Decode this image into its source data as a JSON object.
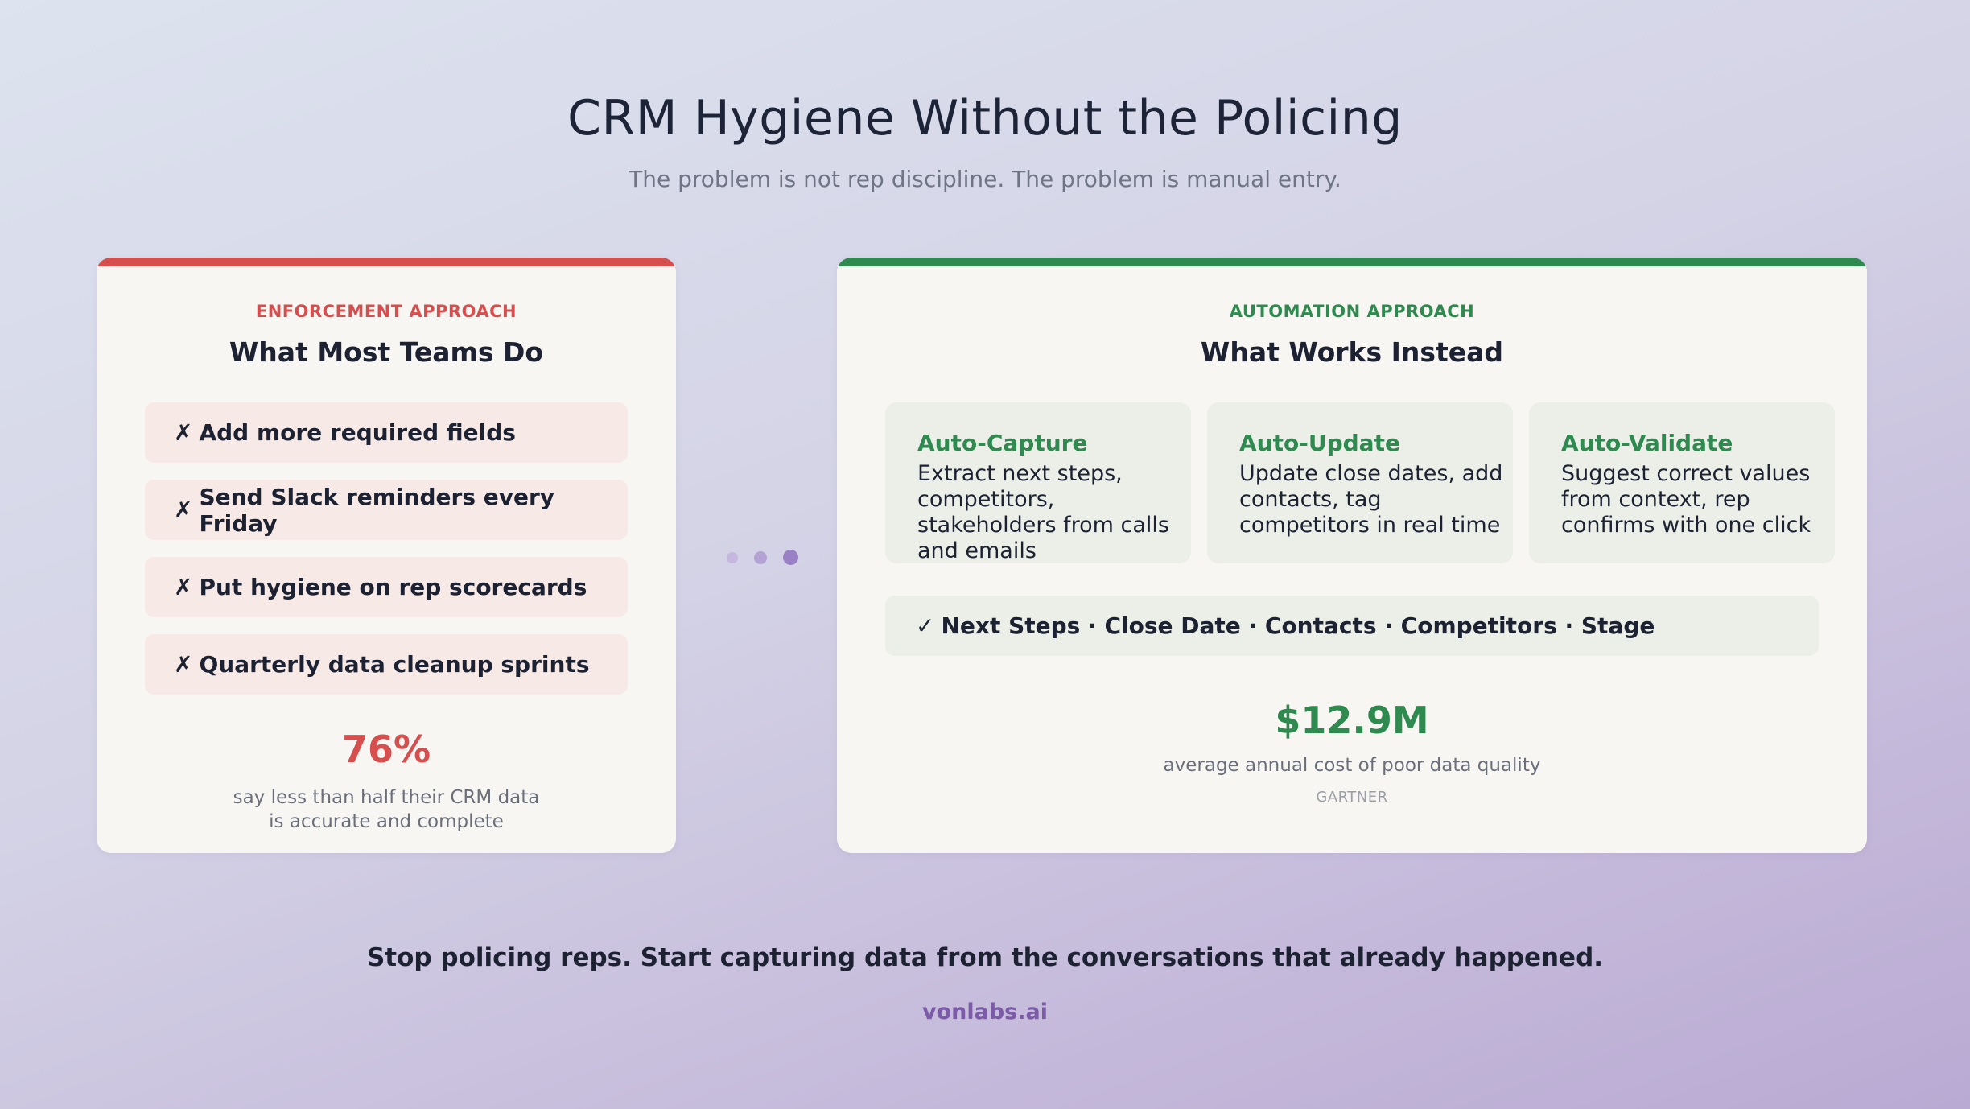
{
  "header": {
    "title": "CRM Hygiene Without the Policing",
    "subtitle": "The problem is not rep discipline. The problem is manual entry."
  },
  "left_card": {
    "accent_color": "#d64e4e",
    "kicker": "ENFORCEMENT APPROACH",
    "title": "What Most Teams Do",
    "items": [
      {
        "icon": "x-mark-icon",
        "glyph": "✗",
        "text": "Add more required fields"
      },
      {
        "icon": "x-mark-icon",
        "glyph": "✗",
        "text": "Send Slack reminders every Friday"
      },
      {
        "icon": "x-mark-icon",
        "glyph": "✗",
        "text": "Put hygiene on rep scorecards"
      },
      {
        "icon": "x-mark-icon",
        "glyph": "✗",
        "text": "Quarterly data cleanup sprints"
      }
    ],
    "stat_value": "76%",
    "stat_note_line1": "say less than half their CRM data",
    "stat_note_line2": "is accurate and complete"
  },
  "right_card": {
    "accent_color": "#2e8a4e",
    "kicker": "AUTOMATION APPROACH",
    "title": "What Works Instead",
    "features": [
      {
        "title": "Auto-Capture",
        "description": "Extract next steps, competitors, stakeholders from calls and emails"
      },
      {
        "title": "Auto-Update",
        "description": "Update close dates, add contacts, tag competitors in real time"
      },
      {
        "title": "Auto-Validate",
        "description": "Suggest correct values from context, rep confirms with one click"
      }
    ],
    "fields_glyph": "✓",
    "fields_text": "Next Steps · Close Date · Contacts · Competitors · Stage",
    "stat_value": "$12.9M",
    "stat_note": "average annual cost of poor data quality",
    "stat_source": "GARTNER"
  },
  "footer": {
    "tagline": "Stop policing reps. Start capturing data from the conversations that already happened.",
    "brand": "vonlabs.ai"
  },
  "colors": {
    "dot_light": "#c5b7dd",
    "dot_mid": "#b3a2d3",
    "dot_dark": "#9a80c4"
  }
}
